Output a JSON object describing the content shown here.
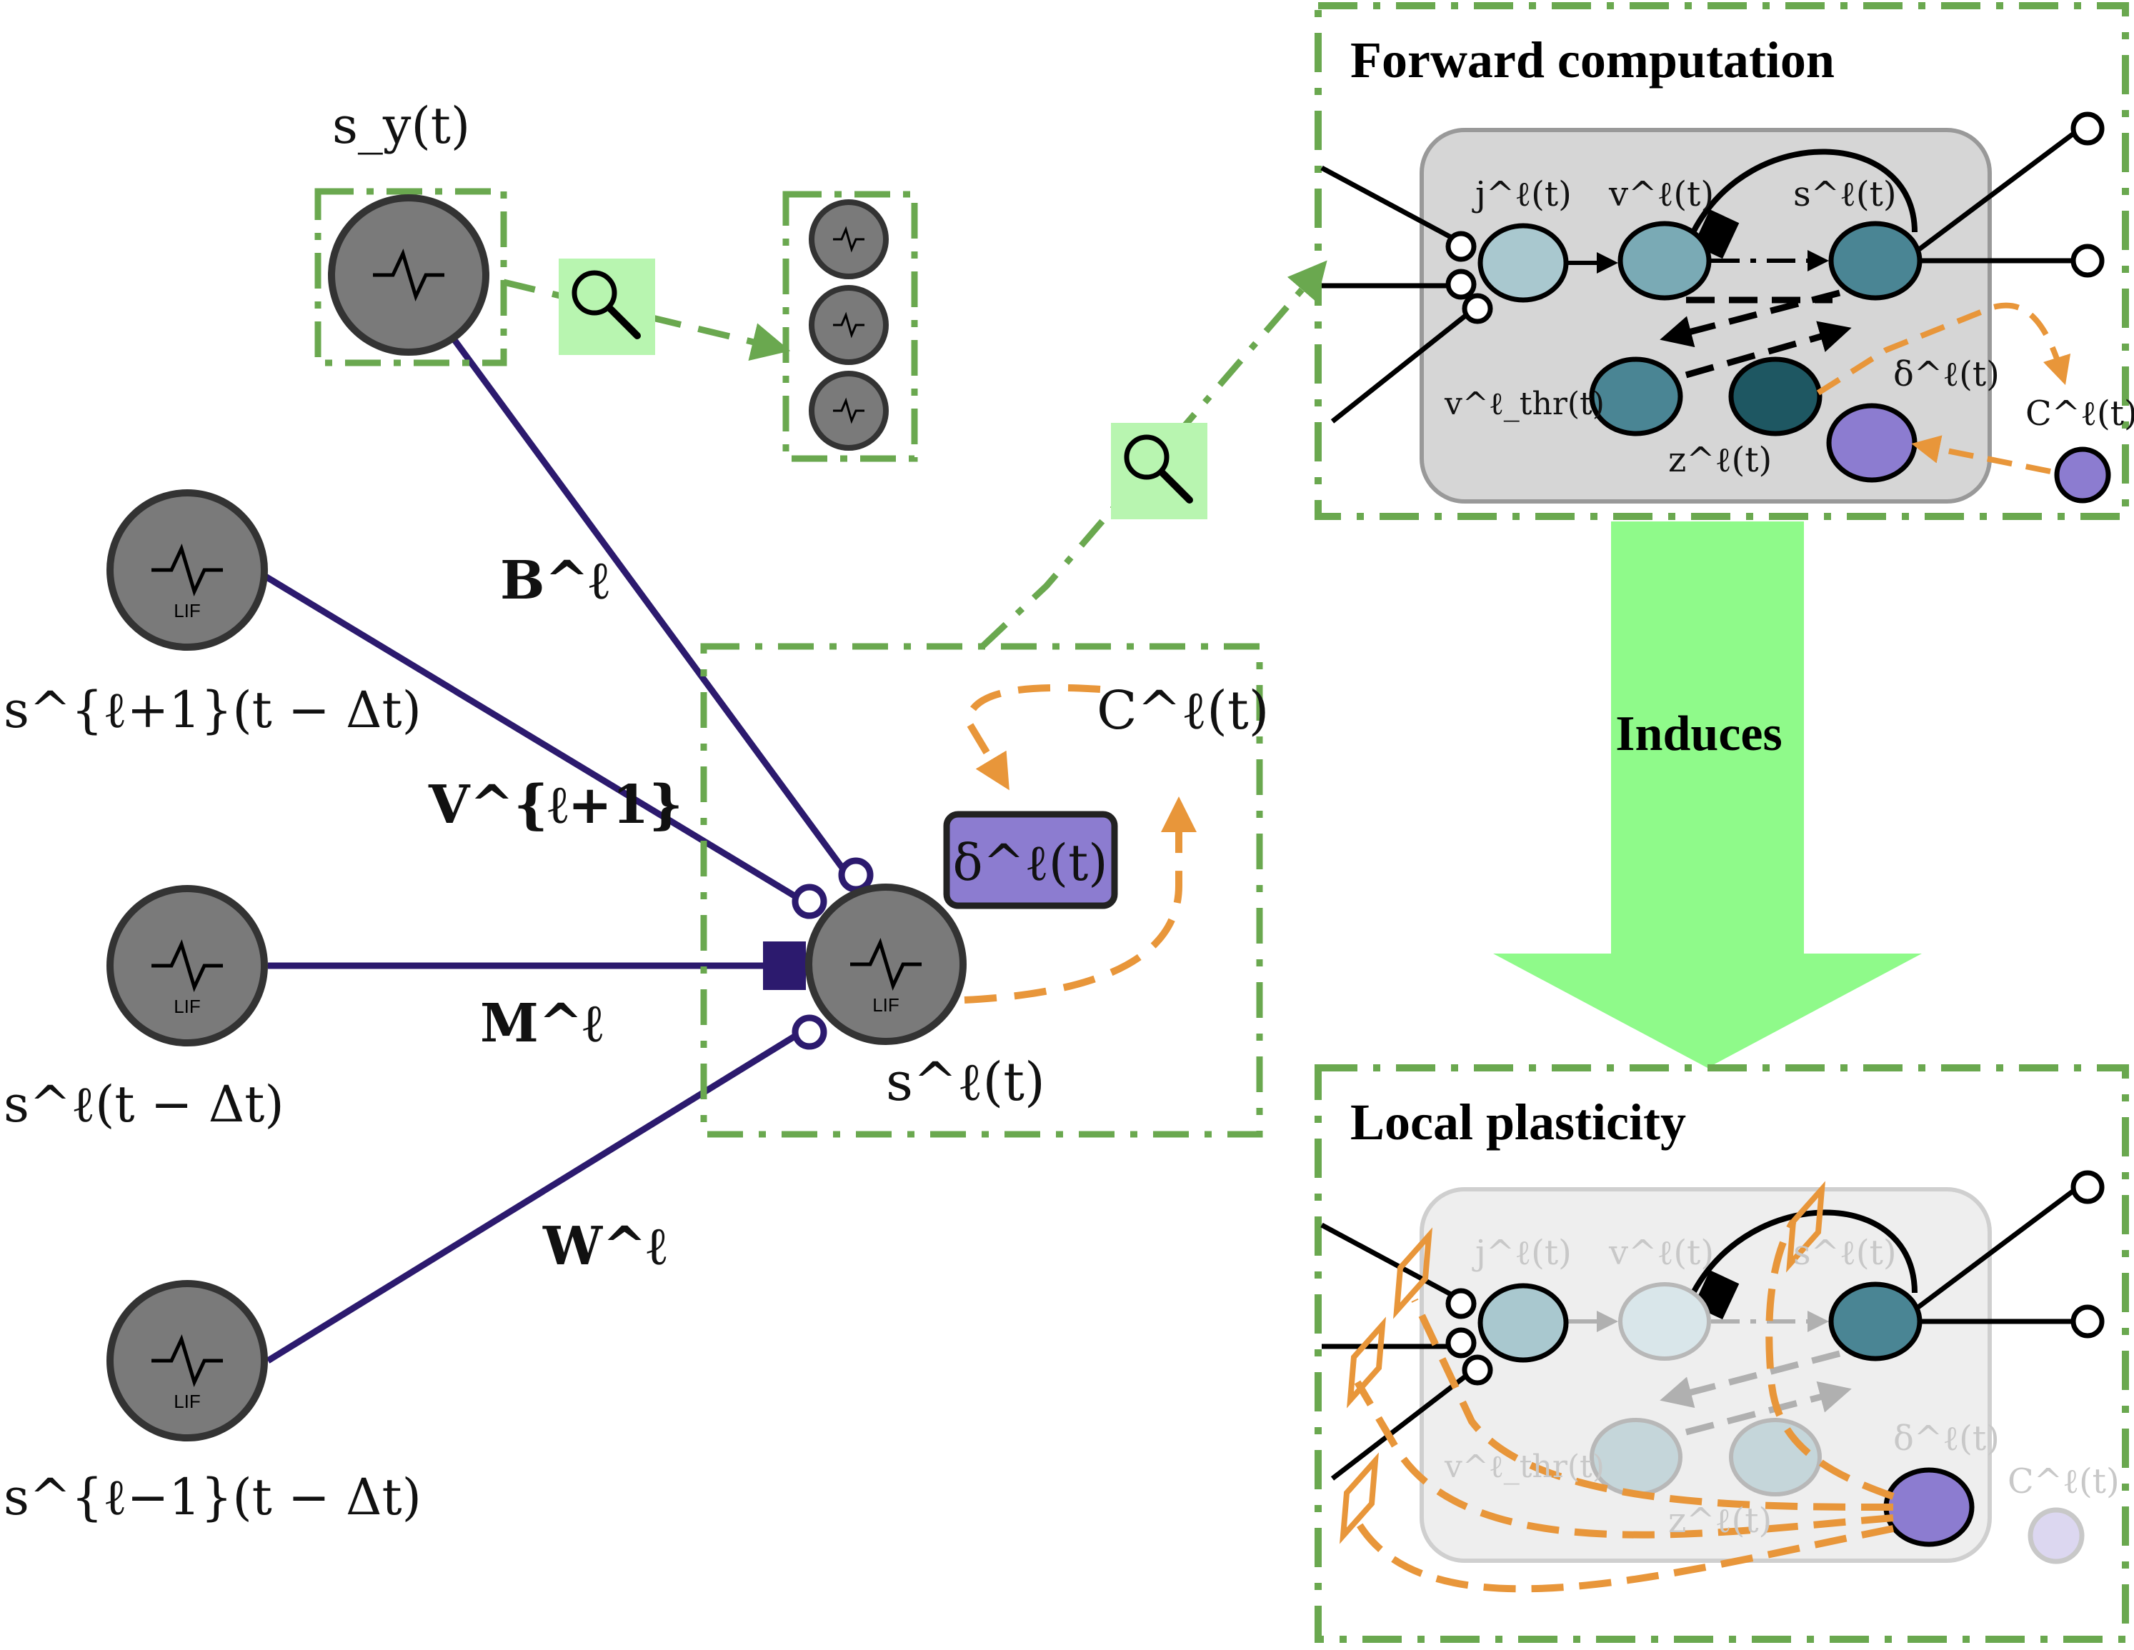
{
  "labels": {
    "s_y": "s_y(t)",
    "B": "B^ℓ",
    "V": "V^{ℓ+1}",
    "M": "M^ℓ",
    "W": "W^ℓ",
    "s_lp1": "s^{ℓ+1}(t − Δt)",
    "s_l_prev": "s^ℓ(t − Δt)",
    "s_lm1": "s^{ℓ−1}(t − Δt)",
    "s_l": "s^ℓ(t)",
    "delta": "δ^ℓ(t)",
    "C": "C^ℓ(t)"
  },
  "neuron_text": {
    "lif": "LIF"
  },
  "forward": {
    "title": "Forward computation",
    "j": "j^ℓ(t)",
    "v": "v^ℓ(t)",
    "s": "s^ℓ(t)",
    "vthr": "v^ℓ_thr(t)",
    "z": "z^ℓ(t)",
    "delta": "δ^ℓ(t)",
    "C": "C^ℓ(t)"
  },
  "arrow_label": "Induces",
  "local": {
    "title": "Local plasticity",
    "j": "j^ℓ(t)",
    "v": "v^ℓ(t)",
    "s": "s^ℓ(t)",
    "vthr": "v^ℓ_thr(t)",
    "z": "z^ℓ(t)",
    "delta": "δ^ℓ(t)",
    "C": "C^ℓ(t)"
  },
  "colors": {
    "neuron_gray": "#7a7a7a",
    "synapse_purple": "#2c1a6e",
    "box_green": "#6aa84f",
    "magnifier_bg": "#b8f5b0",
    "orange": "#e8963a",
    "delta_purple": "#8c7cd0",
    "big_arrow": "#8ffa8a",
    "teal_light": "#a9c8cf",
    "teal_mid": "#7aaab5",
    "teal_dark": "#4a8594",
    "teal_darkest": "#1e5762",
    "panel_gray": "#d6d6d6"
  }
}
